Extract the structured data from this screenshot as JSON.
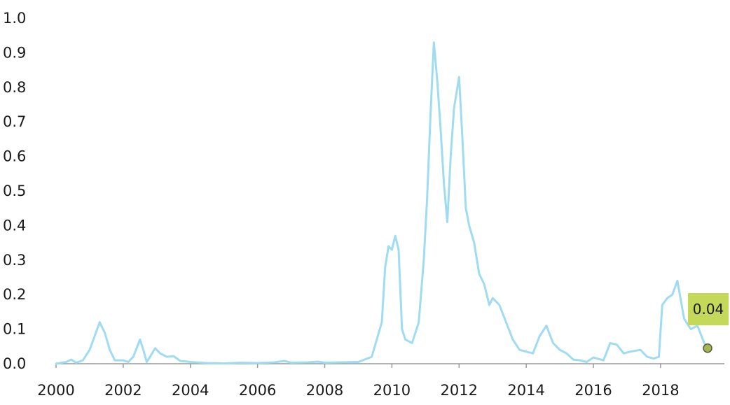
{
  "chart_data": {
    "type": "line",
    "title": "",
    "xlabel": "",
    "ylabel": "",
    "xlim": [
      2000,
      2019.9
    ],
    "ylim": [
      0,
      1.0
    ],
    "x_ticks": [
      2000,
      2002,
      2004,
      2006,
      2008,
      2010,
      2012,
      2014,
      2016,
      2018
    ],
    "x_tick_labels": [
      "2000",
      "2002",
      "2004",
      "2006",
      "2008",
      "2010",
      "2012",
      "2014",
      "2016",
      "2018"
    ],
    "y_ticks": [
      0,
      0.1,
      0.2,
      0.3,
      0.4,
      0.5,
      0.6,
      0.7,
      0.8,
      0.9,
      1.0
    ],
    "y_tick_labels": [
      "0.0",
      "0.1",
      "0.2",
      "0.3",
      "0.4",
      "0.5",
      "0.6",
      "0.7",
      "0.8",
      "0.9",
      "1.0"
    ],
    "grid": false,
    "legend": "none",
    "colors": {
      "line": "#9fdcf2",
      "end_marker": "#a5b84a",
      "label_box": "#c4d95a"
    },
    "series": [
      {
        "x": [
          2000.0,
          2000.3,
          2000.45,
          2000.6,
          2000.8,
          2001.0,
          2001.15,
          2001.3,
          2001.45,
          2001.6,
          2001.75,
          2002.0,
          2002.15,
          2002.3,
          2002.5,
          2002.6,
          2002.7,
          2002.8,
          2002.95,
          2003.1,
          2003.3,
          2003.5,
          2003.7,
          2004.0,
          2004.5,
          2005.0,
          2005.5,
          2006.0,
          2006.5,
          2006.8,
          2007.0,
          2007.5,
          2007.8,
          2008.0,
          2008.5,
          2009.0,
          2009.4,
          2009.7,
          2009.8,
          2009.9,
          2010.0,
          2010.1,
          2010.2,
          2010.3,
          2010.4,
          2010.6,
          2010.8,
          2010.95,
          2011.05,
          2011.15,
          2011.25,
          2011.35,
          2011.45,
          2011.55,
          2011.65,
          2011.75,
          2011.85,
          2012.0,
          2012.1,
          2012.2,
          2012.3,
          2012.45,
          2012.6,
          2012.75,
          2012.9,
          2013.0,
          2013.2,
          2013.4,
          2013.6,
          2013.8,
          2014.0,
          2014.2,
          2014.4,
          2014.6,
          2014.8,
          2015.0,
          2015.2,
          2015.4,
          2015.6,
          2015.8,
          2016.0,
          2016.3,
          2016.5,
          2016.7,
          2016.9,
          2017.1,
          2017.4,
          2017.6,
          2017.8,
          2017.95,
          2018.05,
          2018.2,
          2018.35,
          2018.5,
          2018.7,
          2018.9,
          2019.1,
          2019.3,
          2019.4
        ],
        "values": [
          0.0,
          0.005,
          0.012,
          0.003,
          0.01,
          0.04,
          0.08,
          0.12,
          0.09,
          0.04,
          0.01,
          0.01,
          0.005,
          0.02,
          0.07,
          0.04,
          0.005,
          0.02,
          0.045,
          0.03,
          0.02,
          0.022,
          0.008,
          0.005,
          0.002,
          0.001,
          0.003,
          0.002,
          0.004,
          0.008,
          0.003,
          0.004,
          0.006,
          0.003,
          0.004,
          0.005,
          0.02,
          0.12,
          0.28,
          0.34,
          0.33,
          0.37,
          0.33,
          0.1,
          0.07,
          0.06,
          0.12,
          0.3,
          0.48,
          0.72,
          0.93,
          0.82,
          0.68,
          0.52,
          0.41,
          0.6,
          0.74,
          0.83,
          0.65,
          0.45,
          0.4,
          0.35,
          0.26,
          0.23,
          0.17,
          0.19,
          0.17,
          0.12,
          0.07,
          0.04,
          0.035,
          0.03,
          0.08,
          0.11,
          0.06,
          0.04,
          0.03,
          0.012,
          0.01,
          0.005,
          0.018,
          0.01,
          0.06,
          0.055,
          0.03,
          0.035,
          0.04,
          0.02,
          0.015,
          0.02,
          0.17,
          0.19,
          0.2,
          0.24,
          0.13,
          0.1,
          0.11,
          0.06,
          0.045
        ]
      }
    ],
    "annotation": {
      "x": 2019.4,
      "y": 0.045,
      "text": "0.04"
    }
  }
}
